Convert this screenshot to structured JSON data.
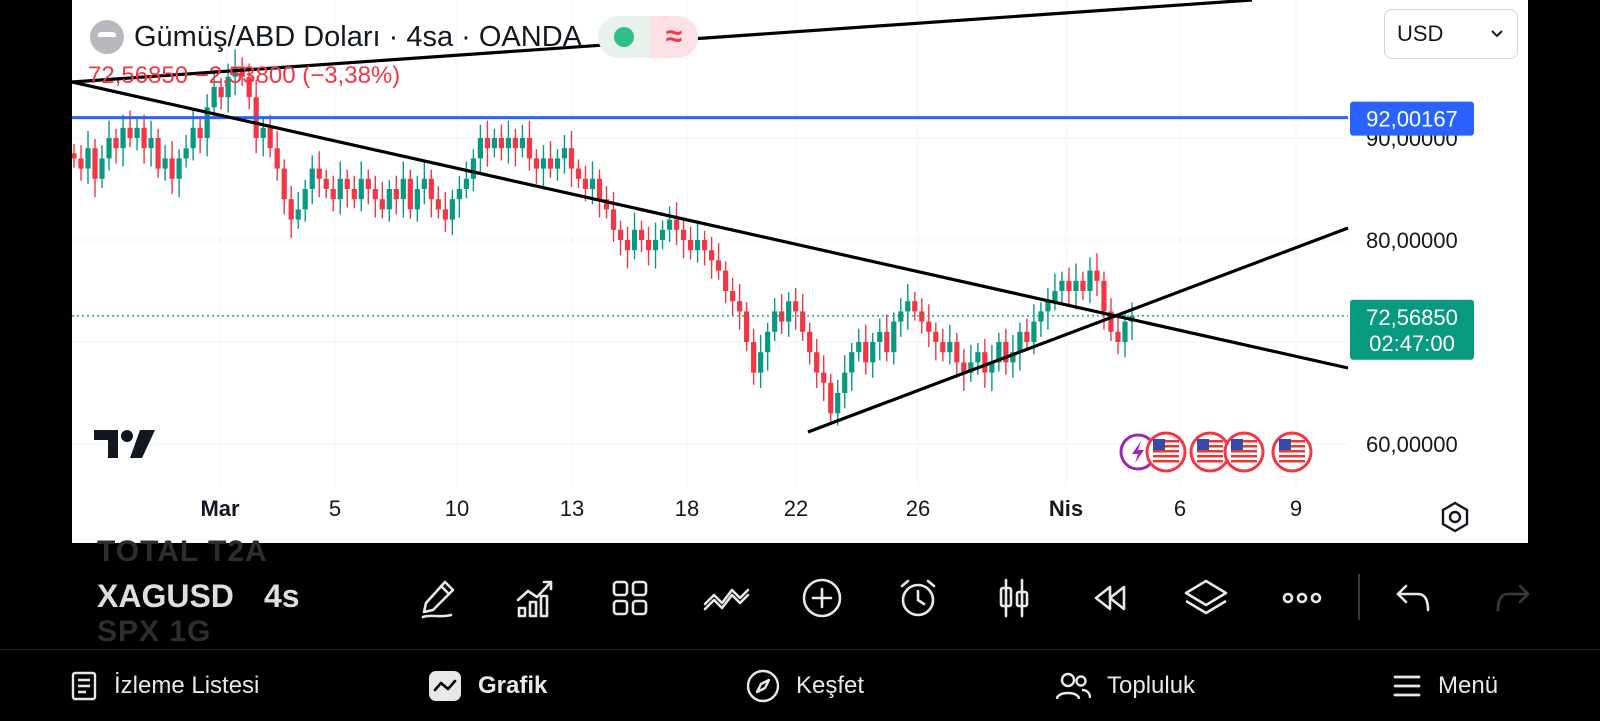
{
  "header": {
    "title": "Gümüş/ABD Doları · 4sa · OANDA",
    "price_change": "72,56850  −2,53800 (−3,38%)",
    "currency": "USD",
    "wave_symbol": "≈"
  },
  "chart_data": {
    "type": "candlestick",
    "y_ticks": [
      "90,00000",
      "80,00000",
      "60,00000"
    ],
    "x_ticks": [
      "Mar",
      "5",
      "10",
      "13",
      "18",
      "22",
      "26",
      "Nis",
      "6",
      "9"
    ],
    "ylim": [
      57,
      104
    ],
    "horizontal_line": {
      "value": 92.00167,
      "label": "92,00167",
      "color": "#2962ff"
    },
    "last_price": {
      "value": 72.5685,
      "label": "72,56850",
      "countdown": "02:47:00",
      "color": "#089981"
    },
    "up_color": "#089981",
    "down_color": "#f23645",
    "candles_close": [
      88,
      87,
      89,
      86,
      88,
      90,
      89,
      91,
      90,
      91,
      89,
      90,
      87,
      88,
      86,
      88,
      89,
      91,
      90,
      93,
      95,
      94,
      96,
      97,
      96,
      94,
      90,
      91,
      89,
      87,
      84,
      82,
      83,
      85,
      87,
      86,
      85,
      84,
      86,
      85,
      84,
      86,
      85,
      84,
      83,
      85,
      84,
      86,
      83,
      85,
      86,
      84,
      83,
      82,
      84,
      85,
      86,
      88,
      90,
      89,
      90,
      89,
      90,
      89,
      90,
      88,
      87,
      88,
      87,
      88,
      89,
      87,
      86,
      85,
      86,
      84,
      83,
      81,
      80,
      79,
      81,
      80,
      79,
      80,
      81,
      82,
      81,
      80,
      79,
      80,
      79,
      78,
      77,
      75,
      74,
      73,
      70,
      67,
      69,
      71,
      73,
      72,
      74,
      73,
      71,
      69,
      67,
      66,
      63,
      65,
      67,
      69,
      70,
      68,
      70,
      71,
      69,
      72,
      73,
      74,
      73,
      72,
      71,
      70,
      69,
      70,
      68,
      67,
      68,
      69,
      67,
      68,
      70,
      68,
      69,
      71,
      70,
      72,
      73,
      74,
      75,
      76,
      75,
      76,
      75,
      77,
      76,
      73,
      71,
      70,
      72,
      72.5685
    ],
    "trendlines": [
      {
        "from": [
          "Feb-27",
          96.8
        ],
        "to": [
          "Apr-07",
          67.5
        ]
      },
      {
        "from": [
          "Mar-22",
          61.0
        ],
        "to": [
          "Apr-08",
          81.0
        ]
      },
      {
        "from": [
          "Feb-26",
          97.0
        ],
        "to": [
          "Apr-08",
          120.0
        ]
      }
    ],
    "event_flags": [
      "bolt-icon",
      "us-flag-icon",
      "us-flag-icon",
      "us-flag-icon",
      "us-flag-icon"
    ]
  },
  "toolbar": {
    "ghost_top": "TOTAL    T2A",
    "symbol": "XAGUSD",
    "timeframe": "4s",
    "ghost_bottom": "SPX      1G",
    "tools": [
      "pencil-icon",
      "indicators-icon",
      "layout-icon",
      "compare-icon",
      "add-icon",
      "alarm-icon",
      "candles-icon",
      "replay-icon",
      "layers-icon",
      "more-icon",
      "undo-icon",
      "redo-icon"
    ]
  },
  "nav": {
    "watchlist": "İzleme Listesi",
    "chart": "Grafik",
    "explore": "Keşfet",
    "community": "Topluluk",
    "menu": "Menü"
  }
}
